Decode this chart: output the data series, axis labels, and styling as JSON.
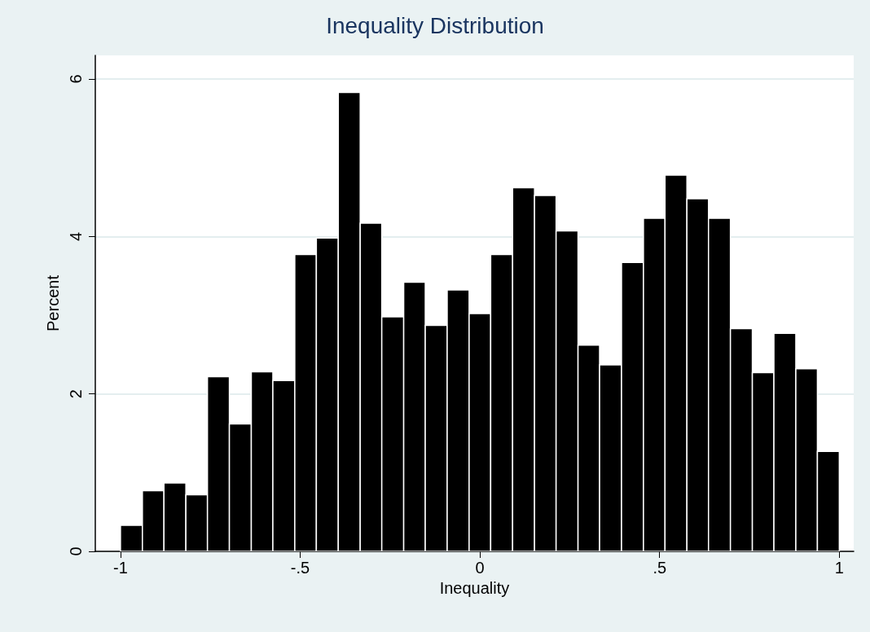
{
  "chart_data": {
    "type": "histogram",
    "title": "Inequality Distribution",
    "xlabel": "Inequality",
    "ylabel": "Percent",
    "bins": [
      -1,
      -0.939,
      -0.879,
      -0.818,
      -0.758,
      -0.697,
      -0.636,
      -0.576,
      -0.515,
      -0.455,
      -0.394,
      -0.333,
      -0.273,
      -0.212,
      -0.152,
      -0.091,
      -0.03,
      0.03,
      0.091,
      0.152,
      0.212,
      0.273,
      0.333,
      0.394,
      0.455,
      0.515,
      0.576,
      0.636,
      0.697,
      0.758,
      0.818,
      0.879,
      0.939,
      1
    ],
    "values": [
      0.33,
      0.77,
      0.87,
      0.72,
      2.22,
      1.62,
      2.28,
      2.17,
      3.77,
      3.98,
      5.83,
      4.17,
      2.98,
      3.42,
      2.87,
      3.32,
      3.02,
      3.77,
      4.62,
      4.52,
      4.07,
      2.62,
      2.37,
      3.67,
      4.23,
      4.78,
      4.48,
      4.23,
      2.83,
      2.27,
      2.77,
      2.32,
      1.27
    ],
    "color": "#000000",
    "xlim": [
      -1.07,
      1.04
    ],
    "xticks": [
      {
        "value": -1,
        "label": "-1"
      },
      {
        "value": -0.5,
        "label": "-.5"
      },
      0,
      {
        "value": 0.5,
        "label": ".5"
      },
      1
    ],
    "ylim": [
      0,
      6.3
    ],
    "yticks": [
      0,
      2,
      4,
      6
    ],
    "grid": "y"
  }
}
